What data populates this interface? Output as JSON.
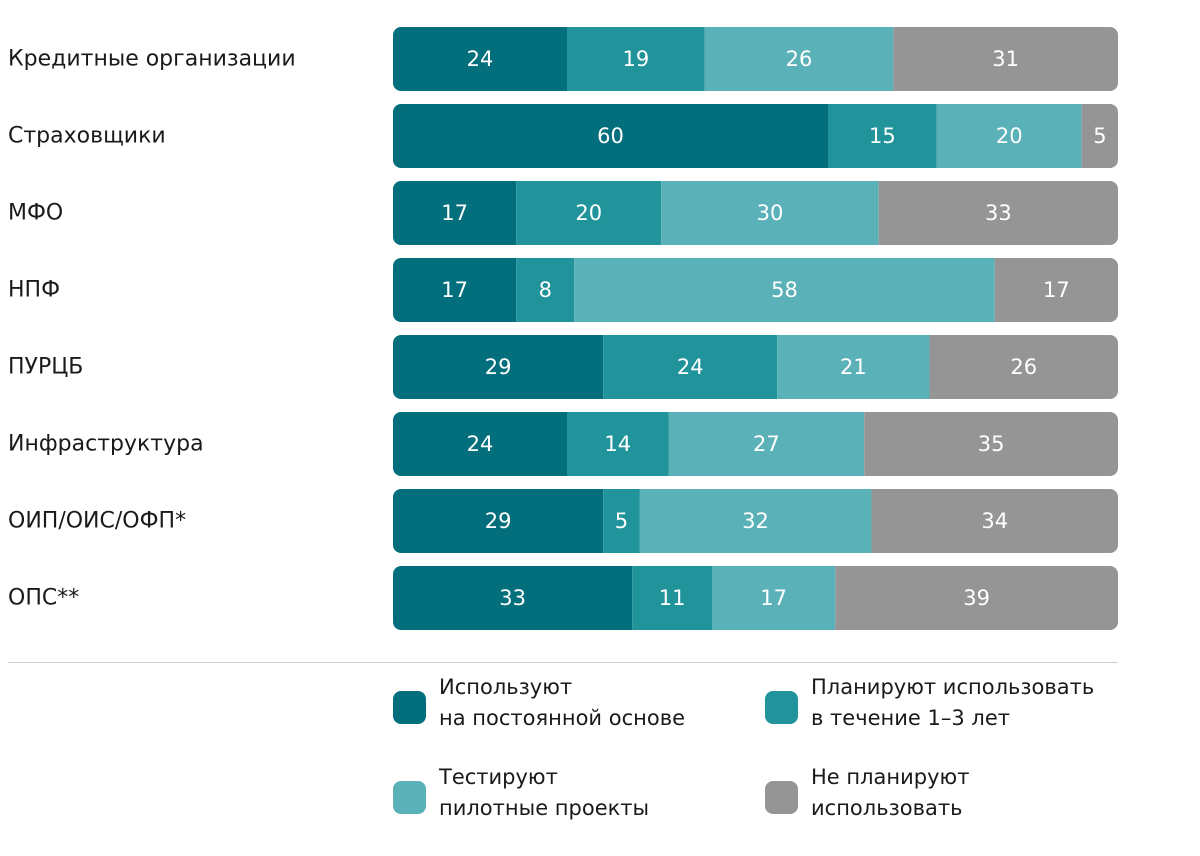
{
  "chart_data": {
    "type": "bar",
    "orientation": "horizontal",
    "stacked": true,
    "categories": [
      "Кредитные организации",
      "Страховщики",
      "МФО",
      "НПФ",
      "ПУРЦБ",
      "Инфраструктура",
      "ОИП/ОИС/ОФП*",
      "ОПС**"
    ],
    "series": [
      {
        "name": "Используют на постоянной основе",
        "color": "#036f7c",
        "values": [
          24,
          60,
          17,
          17,
          29,
          24,
          29,
          33
        ]
      },
      {
        "name": "Планируют использовать в течение 1–3 лет",
        "color": "#21939a",
        "values": [
          19,
          15,
          20,
          8,
          24,
          14,
          5,
          11
        ]
      },
      {
        "name": "Тестируют пилотные проекты",
        "color": "#5ab1b8",
        "values": [
          26,
          20,
          30,
          58,
          21,
          27,
          32,
          17
        ]
      },
      {
        "name": "Не планируют использовать",
        "color": "#959595",
        "values": [
          31,
          5,
          33,
          17,
          26,
          35,
          34,
          39
        ]
      }
    ],
    "xlim": [
      0,
      100
    ],
    "legend_position": "bottom"
  },
  "legend": [
    {
      "line1": "Используют",
      "line2": "на постоянной основе",
      "color": "#036f7c"
    },
    {
      "line1": "Планируют использовать",
      "line2": "в течение 1–3 лет",
      "color": "#21939a"
    },
    {
      "line1": "Тестируют",
      "line2": "пилотные проекты",
      "color": "#5ab1b8"
    },
    {
      "line1": "Не планируют",
      "line2": "использовать",
      "color": "#959595"
    }
  ]
}
